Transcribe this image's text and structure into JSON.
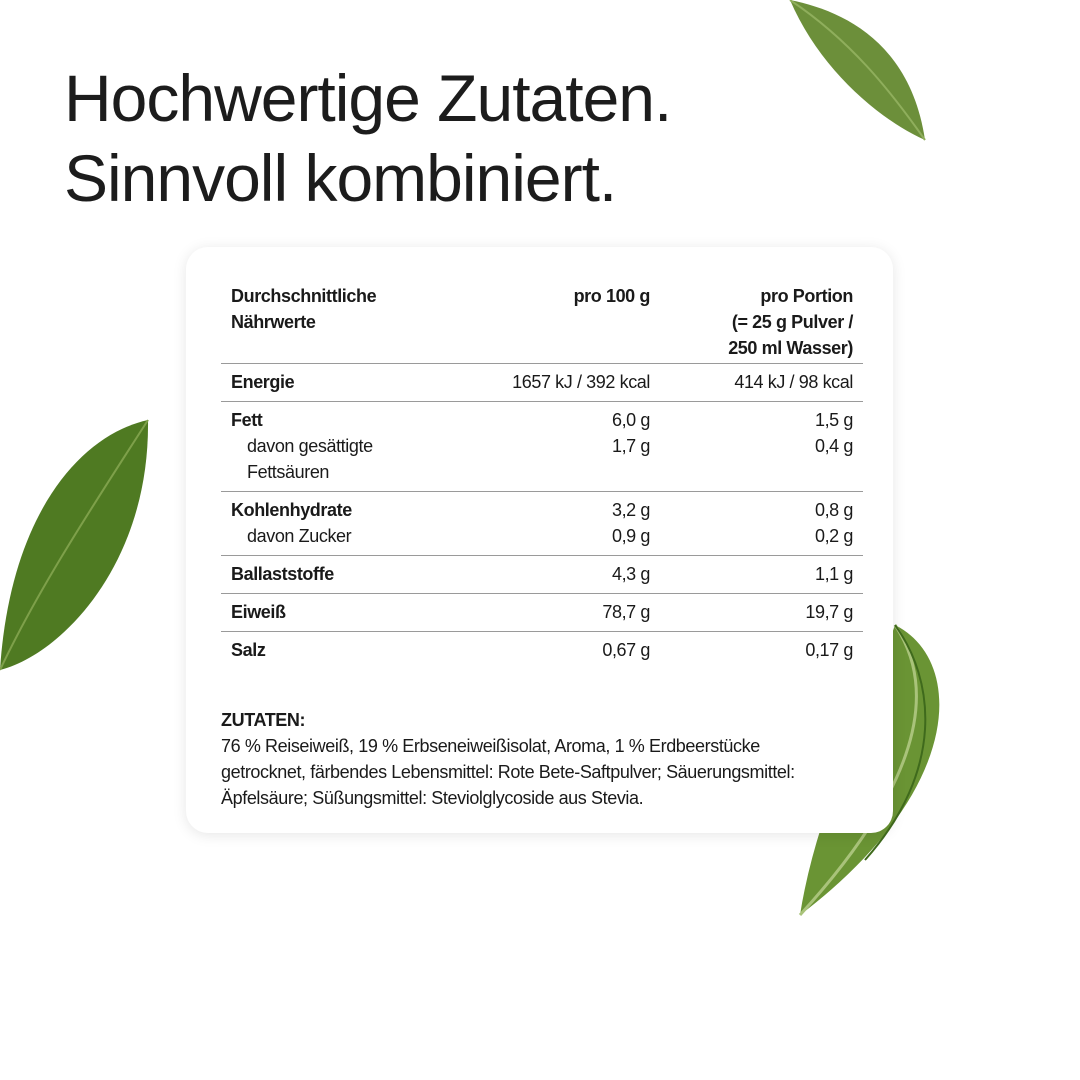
{
  "headline": {
    "line1": "Hochwertige Zutaten.",
    "line2": "Sinnvoll kombiniert."
  },
  "table": {
    "header": {
      "label": "Durchschnittliche Nährwerte",
      "col1": "pro 100 g",
      "col2_line1": "pro Portion",
      "col2_line2": "(= 25 g Pulver /",
      "col2_line3": "250 ml Wasser)"
    },
    "rows": [
      {
        "label": "Energie",
        "per100": "1657 kJ / 392 kcal",
        "portion": "414 kJ / 98 kcal"
      },
      {
        "label": "Fett",
        "per100": "6,0 g",
        "portion": "1,5 g",
        "sub_label": "davon gesättigte Fettsäuren",
        "sub_per100": "1,7 g",
        "sub_portion": "0,4 g"
      },
      {
        "label": "Kohlenhydrate",
        "per100": "3,2 g",
        "portion": "0,8 g",
        "sub_label": "davon Zucker",
        "sub_per100": "0,9 g",
        "sub_portion": "0,2 g"
      },
      {
        "label": "Ballaststoffe",
        "per100": "4,3 g",
        "portion": "1,1 g"
      },
      {
        "label": "Eiweiß",
        "per100": "78,7 g",
        "portion": "19,7 g"
      },
      {
        "label": "Salz",
        "per100": "0,67 g",
        "portion": "0,17 g"
      }
    ]
  },
  "ingredients": {
    "heading": "ZUTATEN:",
    "text": "76 % Reiseiweiß, 19 % Erbseneiweißisolat, Aroma, 1 % Erdbeerstücke getrocknet, färbendes Lebensmittel: Rote Bete-Saftpulver; Säuerungs­mittel: Äpfelsäure; Süßungsmittel: Steviolglycoside aus Stevia."
  },
  "colors": {
    "leaf": "#5f8a2a",
    "leaf_dark": "#3f6a1c",
    "text": "#1a1a1a"
  }
}
